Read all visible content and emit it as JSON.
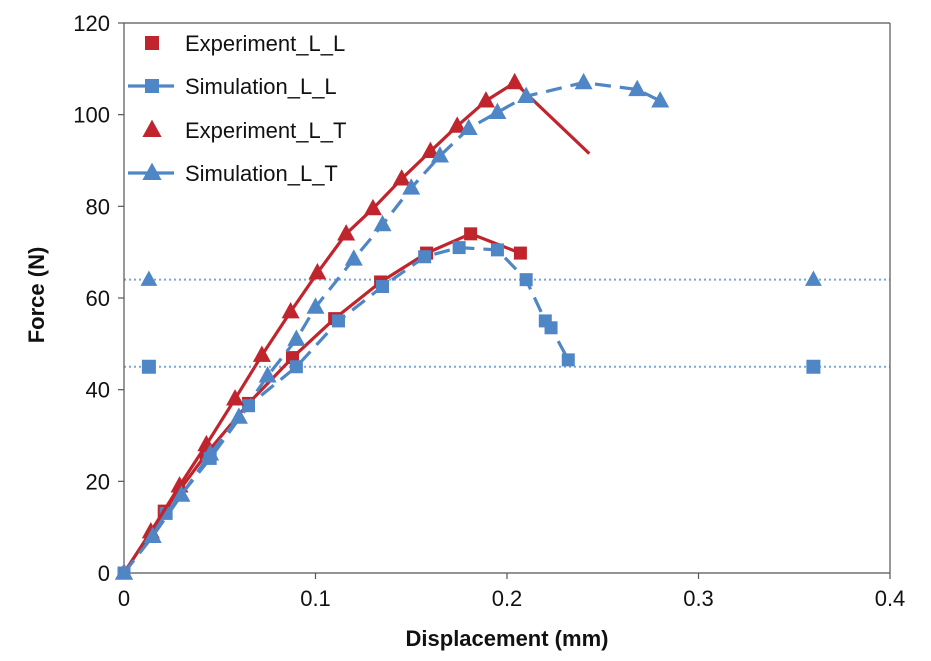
{
  "chart_data": {
    "type": "line",
    "title": "",
    "xlabel": "Displacement (mm)",
    "ylabel": "Force (N)",
    "xlim": [
      0,
      0.4
    ],
    "ylim": [
      0,
      120
    ],
    "xticks": [
      0,
      0.1,
      0.2,
      0.3,
      0.4
    ],
    "yticks": [
      0,
      20,
      40,
      60,
      80,
      100,
      120
    ],
    "xtick_labels": [
      "0",
      "0.1",
      "0.2",
      "0.3",
      "0.4"
    ],
    "ytick_labels": [
      "0",
      "20",
      "40",
      "60",
      "80",
      "100",
      "120"
    ],
    "grid": false,
    "legend_position": "top-left",
    "series": [
      {
        "name": "Experiment_L_L",
        "color": "#c0252d",
        "line": "solid",
        "marker": "square",
        "x": [
          0,
          0.021,
          0.043,
          0.065,
          0.088,
          0.11,
          0.134,
          0.158,
          0.181,
          0.207
        ],
        "y": [
          0,
          13.5,
          26,
          37,
          47,
          55.5,
          63.5,
          69.8,
          74,
          69.8
        ]
      },
      {
        "name": "Simulation_L_L",
        "color": "#4f86c6",
        "line": "dashed",
        "marker": "square",
        "x": [
          0,
          0.022,
          0.045,
          0.065,
          0.09,
          0.112,
          0.135,
          0.157,
          0.175,
          0.195,
          0.21,
          0.22,
          0.223,
          0.232
        ],
        "y": [
          0,
          13,
          25,
          36.5,
          45,
          55,
          62.5,
          69,
          71,
          70.5,
          64,
          55,
          53.5,
          46.5
        ]
      },
      {
        "name": "Experiment_L_T",
        "color": "#c0252d",
        "line": "solid",
        "marker": "triangle",
        "x": [
          0,
          0.014,
          0.029,
          0.043,
          0.058,
          0.072,
          0.087,
          0.101,
          0.116,
          0.13,
          0.145,
          0.16,
          0.174,
          0.189,
          0.204,
          0.243
        ],
        "y": [
          0,
          9,
          19,
          28,
          38,
          47.5,
          57,
          65.5,
          74,
          79.5,
          86,
          92,
          97.5,
          103,
          107,
          91.5
        ]
      },
      {
        "name": "Simulation_L_T",
        "color": "#4f86c6",
        "line": "dashed",
        "marker": "triangle",
        "x": [
          0,
          0.015,
          0.03,
          0.045,
          0.06,
          0.075,
          0.09,
          0.1,
          0.12,
          0.135,
          0.15,
          0.165,
          0.18,
          0.195,
          0.21,
          0.24,
          0.268,
          0.28
        ],
        "y": [
          0,
          8,
          17,
          26,
          34,
          43,
          51,
          58,
          68.5,
          76,
          84,
          91,
          97,
          100.5,
          104,
          107,
          105.5,
          103
        ]
      }
    ],
    "annotations": [
      {
        "type": "hline",
        "y": 64,
        "color": "#7aa7d6",
        "style": "dotted",
        "end_markers": [
          0.013,
          0.36
        ],
        "marker": "triangle"
      },
      {
        "type": "hline",
        "y": 45,
        "color": "#7aa7d6",
        "style": "dotted",
        "end_markers": [
          0.013,
          0.36
        ],
        "marker": "square"
      }
    ]
  }
}
